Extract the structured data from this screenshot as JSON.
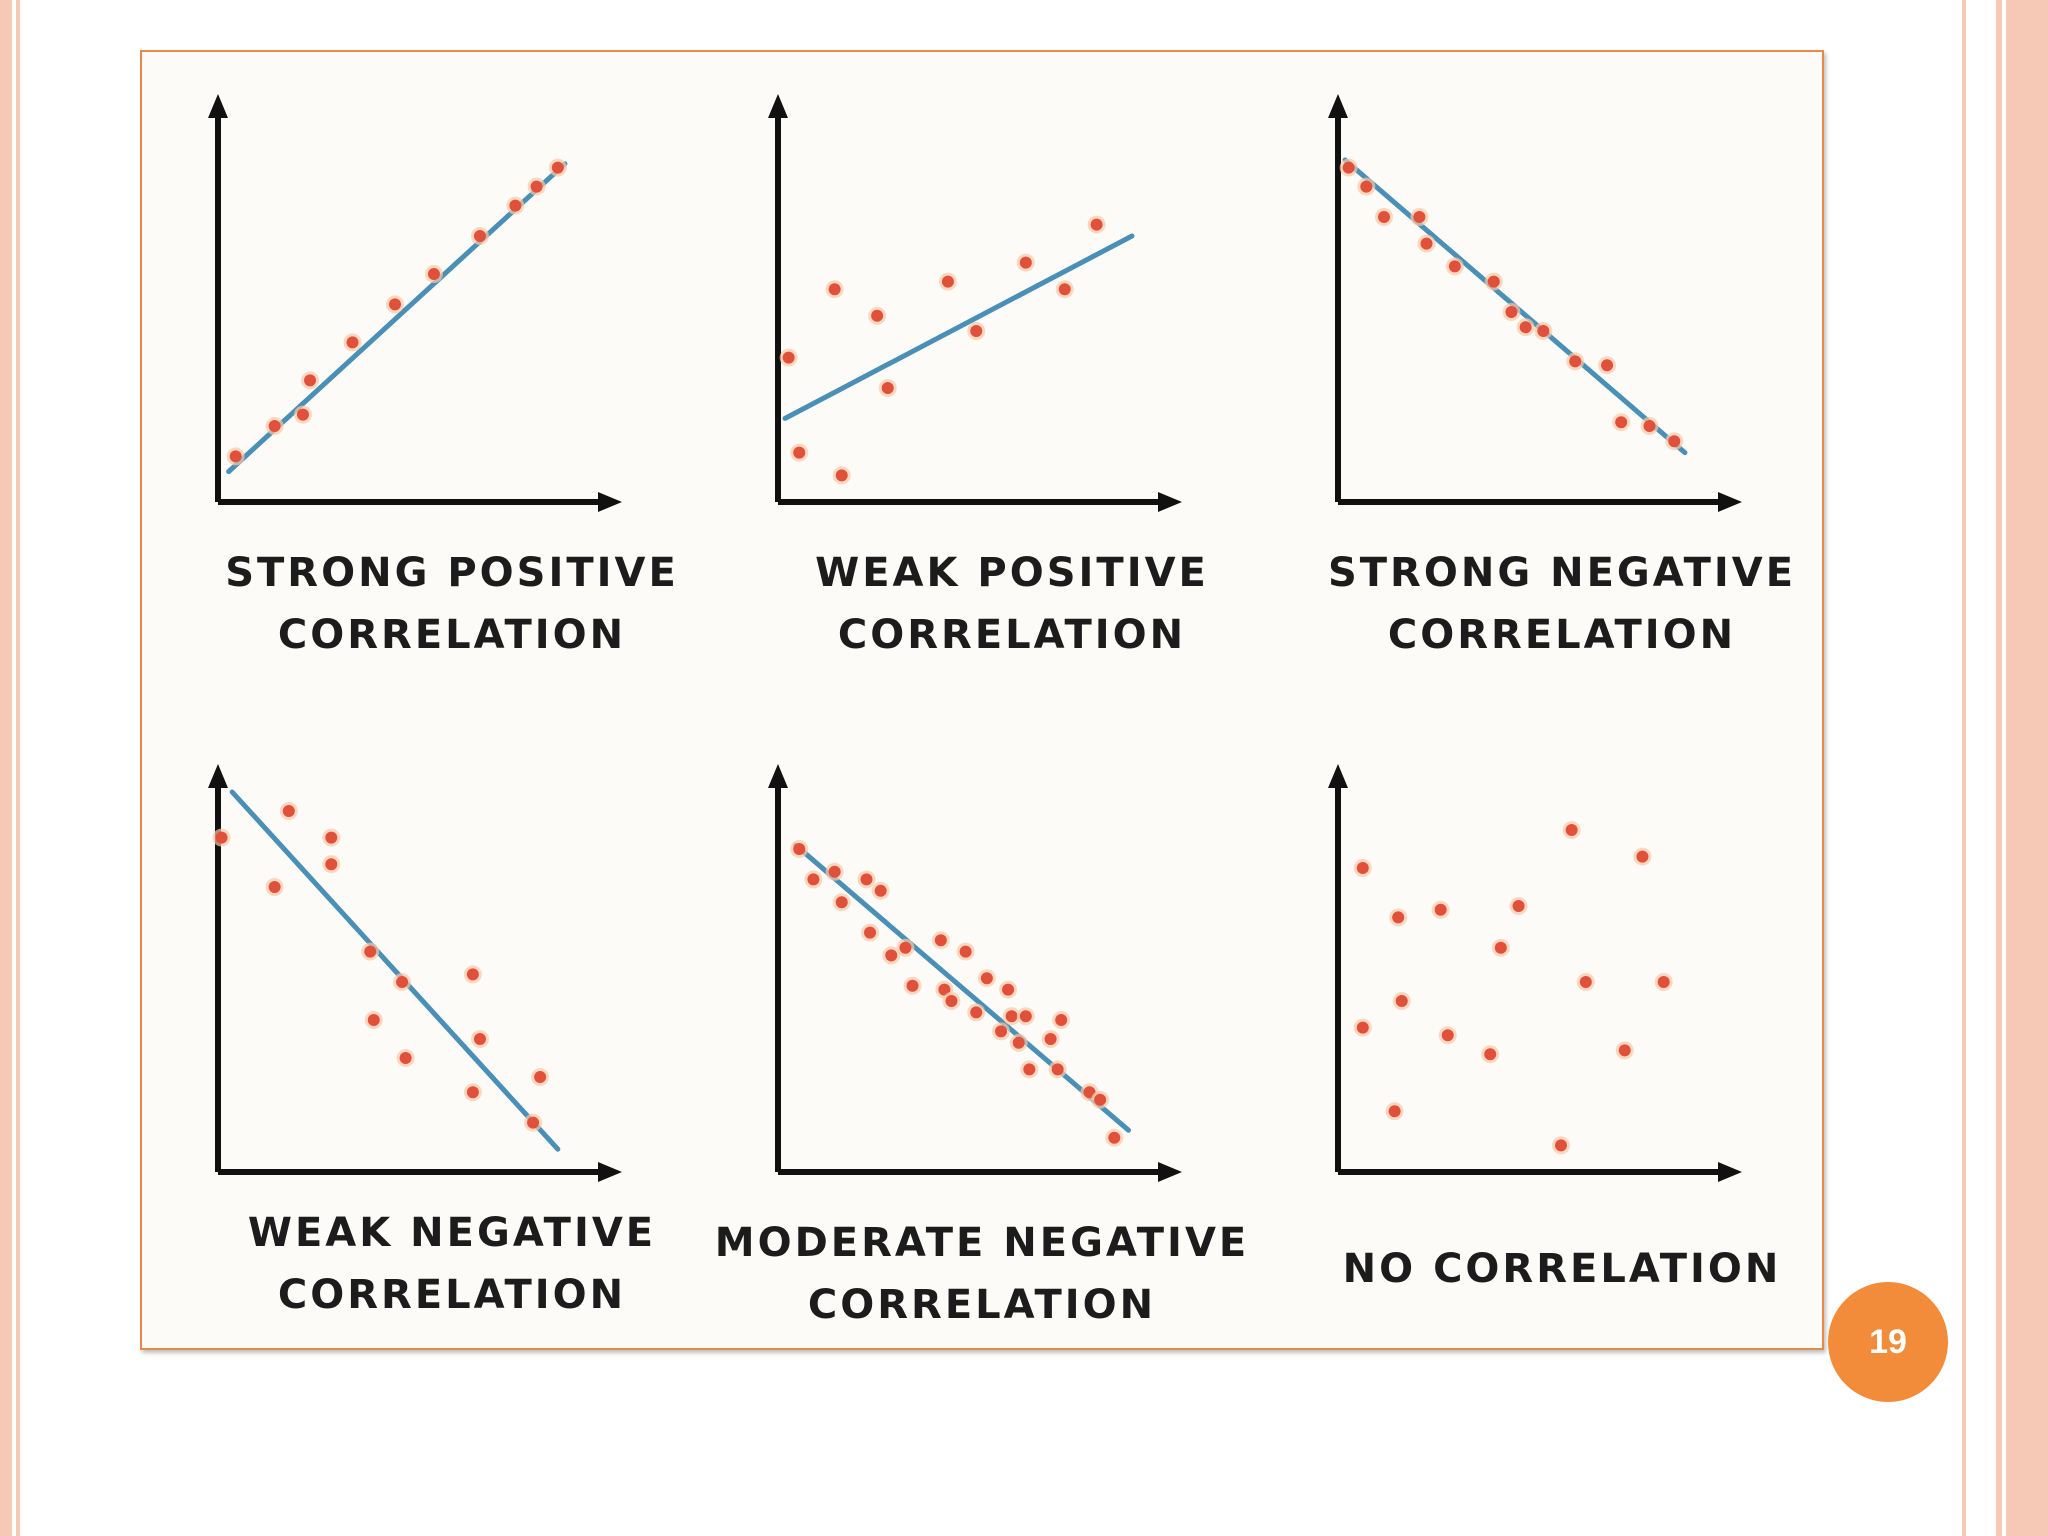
{
  "slide": {
    "page_number": "19"
  },
  "chart_data": [
    {
      "type": "scatter",
      "title": "STRONG POSITIVE\nCORRELATION",
      "xlim": [
        0,
        10
      ],
      "ylim": [
        0,
        10
      ],
      "x": [
        0.5,
        1.6,
        2.4,
        2.6,
        3.8,
        5.0,
        6.1,
        7.4,
        8.4,
        9.0,
        9.6
      ],
      "y": [
        1.2,
        2.0,
        2.3,
        3.2,
        4.2,
        5.2,
        6.0,
        7.0,
        7.8,
        8.3,
        8.8
      ],
      "trend": [
        [
          0.3,
          0.8
        ],
        [
          9.8,
          8.9
        ]
      ],
      "axes": {
        "grid": false,
        "ticks": false
      }
    },
    {
      "type": "scatter",
      "title": "WEAK POSITIVE\nCORRELATION",
      "xlim": [
        0,
        10
      ],
      "ylim": [
        0,
        10
      ],
      "x": [
        0.3,
        0.6,
        1.6,
        1.8,
        2.8,
        3.1,
        4.8,
        5.6,
        7.0,
        8.1,
        9.0
      ],
      "y": [
        3.8,
        1.3,
        5.6,
        0.7,
        4.9,
        3.0,
        5.8,
        4.5,
        6.3,
        5.6,
        7.3
      ],
      "trend": [
        [
          0.2,
          2.2
        ],
        [
          10.0,
          7.0
        ]
      ],
      "axes": {
        "grid": false,
        "ticks": false
      }
    },
    {
      "type": "scatter",
      "title": "STRONG NEGATIVE\nCORRELATION",
      "xlim": [
        0,
        10
      ],
      "ylim": [
        0,
        10
      ],
      "x": [
        0.3,
        0.8,
        1.3,
        2.3,
        2.5,
        3.3,
        4.4,
        4.9,
        5.3,
        5.8,
        6.7,
        7.6,
        8.0,
        8.8,
        9.5
      ],
      "y": [
        8.8,
        8.3,
        7.5,
        7.5,
        6.8,
        6.2,
        5.8,
        5.0,
        4.6,
        4.5,
        3.7,
        3.6,
        2.1,
        2.0,
        1.6
      ],
      "trend": [
        [
          0.2,
          9.0
        ],
        [
          9.8,
          1.3
        ]
      ],
      "axes": {
        "grid": false,
        "ticks": false
      }
    },
    {
      "type": "scatter",
      "title": "WEAK NEGATIVE\nCORRELATION",
      "xlim": [
        0,
        10
      ],
      "ylim": [
        0,
        10
      ],
      "x": [
        0.1,
        1.6,
        2.0,
        3.2,
        3.2,
        4.3,
        4.4,
        5.2,
        5.3,
        7.2,
        7.2,
        7.4,
        8.9,
        9.1
      ],
      "y": [
        8.8,
        7.5,
        9.5,
        8.8,
        8.1,
        5.8,
        4.0,
        5.0,
        3.0,
        5.2,
        2.1,
        3.5,
        1.3,
        2.5
      ],
      "trend": [
        [
          0.4,
          10.0
        ],
        [
          9.6,
          0.6
        ]
      ],
      "axes": {
        "grid": false,
        "ticks": false
      }
    },
    {
      "type": "scatter",
      "title": "MODERATE NEGATIVE\nCORRELATION",
      "xlim": [
        0,
        10
      ],
      "ylim": [
        0,
        10
      ],
      "x": [
        0.6,
        1.0,
        1.6,
        1.8,
        2.5,
        2.6,
        2.9,
        3.2,
        3.6,
        3.8,
        4.6,
        4.7,
        4.9,
        5.3,
        5.6,
        5.9,
        6.3,
        6.5,
        6.6,
        6.8,
        7.0,
        7.1,
        7.7,
        7.9,
        8.0,
        8.8,
        9.1,
        9.5
      ],
      "y": [
        8.5,
        7.7,
        7.9,
        7.1,
        7.7,
        6.3,
        7.4,
        5.7,
        5.9,
        4.9,
        6.1,
        4.8,
        4.5,
        5.8,
        4.2,
        5.1,
        3.7,
        4.8,
        4.1,
        3.4,
        4.1,
        2.7,
        3.5,
        2.7,
        4.0,
        2.1,
        1.9,
        0.9
      ],
      "trend": [
        [
          0.5,
          8.6
        ],
        [
          9.9,
          1.1
        ]
      ],
      "axes": {
        "grid": false,
        "ticks": false
      }
    },
    {
      "type": "scatter",
      "title": "NO CORRELATION",
      "xlim": [
        0,
        10
      ],
      "ylim": [
        0,
        10
      ],
      "x": [
        0.7,
        0.7,
        1.6,
        1.7,
        1.8,
        2.9,
        3.1,
        4.3,
        4.6,
        5.1,
        6.3,
        6.6,
        7.0,
        8.1,
        8.6,
        9.2
      ],
      "y": [
        8.0,
        3.8,
        1.6,
        6.7,
        4.5,
        6.9,
        3.6,
        3.1,
        5.9,
        7.0,
        0.7,
        9.0,
        5.0,
        3.2,
        8.3,
        5.0
      ],
      "trend": null,
      "axes": {
        "grid": false,
        "ticks": false
      }
    }
  ]
}
